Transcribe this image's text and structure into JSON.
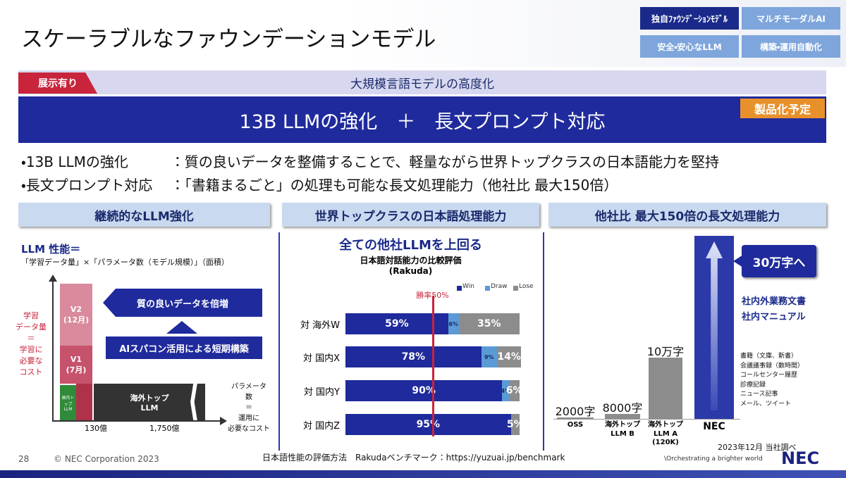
{
  "header": {
    "title": "スケーラブルなファウンデーションモデル",
    "nav": [
      "独自ﾌｧｳﾝﾃﾞｰｼｮﾝﾓﾃﾞﾙ",
      "マルチモーダルAI",
      "安全・安心なLLM",
      "構築・運用自動化"
    ]
  },
  "banner": {
    "tag": "展示有り",
    "subtitle": "大規模言語モデルの高度化",
    "headline": "13B LLMの強化　＋　長文プロンプト対応",
    "badge": "製品化予定"
  },
  "bullets": [
    {
      "label": "13B LLMの強化",
      "text": "：質の良いデータを整備することで、軽量ながら世界トップクラスの日本語能力を堅持"
    },
    {
      "label": "長文プロンプト対応",
      "text": "：「書籍まるごと」の処理も可能な長文処理能力（他社比 最大150倍）"
    }
  ],
  "panels": [
    {
      "title": "継続的なLLM強化",
      "formula_title": "LLM 性能＝",
      "formula": "「学習データ量」×「パラメータ数（モデル規模）」（面積）",
      "y_label": "学習\nデータ量\n＝\n学習に\n必要な\nコスト",
      "x_label": "パラメータ\n数\n＝\n運用に\n必要なコスト",
      "blocks": [
        "V2\n(12月)",
        "V1\n(7月)",
        "国内トップ\nLLM",
        "海外トップ\nLLM"
      ],
      "callouts": [
        "質の良いデータを倍増",
        "AIスパコン活用による短期構築"
      ],
      "x_ticks": [
        "130億",
        "1,750億"
      ]
    },
    {
      "title": "世界トップクラスの日本語処理能力",
      "headline": "全ての他社LLMを上回る",
      "chart": {
        "type": "bar",
        "orientation": "horizontal",
        "stacked": true,
        "title": "日本語対話能力の比較評価",
        "subtitle": "(Rakuda)",
        "reference_line": {
          "value": 50,
          "label": "勝率50%"
        },
        "categories": [
          "対 海外W",
          "対 国内X",
          "対 国内Y",
          "対 国内Z"
        ],
        "xlim": [
          0,
          100
        ],
        "series": [
          {
            "name": "Win",
            "color": "#1f2a9c",
            "values": [
              59,
              78,
              90,
              95
            ],
            "value_labels": [
              "59%",
              "78%",
              "90%",
              "95%"
            ]
          },
          {
            "name": "Draw",
            "color": "#5b9bd5",
            "values": [
              6,
              9,
              4,
              0
            ],
            "value_labels": [
              "6%",
              "9%",
              "4%",
              null
            ]
          },
          {
            "name": "Lose",
            "color": "#8c8c8c",
            "values": [
              35,
              14,
              6,
              5
            ],
            "value_labels": [
              "35%",
              "14%",
              "6%",
              "5%"
            ]
          }
        ]
      }
    },
    {
      "title": "他社比 最大150倍の長文処理能力",
      "chart": {
        "type": "bar",
        "categories": [
          "OSS",
          "海外トップ\nLLM B",
          "海外トップ\nLLM A\n(120K)",
          "NEC"
        ],
        "values": [
          2000,
          8000,
          100000,
          300000
        ],
        "value_labels": [
          "2000字",
          "8000字",
          "10万字",
          "30万字へ"
        ],
        "ylim": [
          0,
          300000
        ],
        "color": "#8c8c8c",
        "highlight_color": "#2b3aa8"
      },
      "annotations": [
        "社内外業務文書\n社内マニュアル",
        "書籍（文庫、新書）\n会議議事録（数時間）\nコールセンター履歴\n診療記録\nニュース記事\nメール、ツイート"
      ]
    }
  ],
  "footer": {
    "page": "28",
    "copyright": "© NEC Corporation 2023",
    "note": "日本語性能の評価方法　Rakudaベンチマーク：https://yuzuai.jp/benchmark",
    "source": "2023年12月 当社調べ",
    "tagline": "\\Orchestrating a brighter world",
    "logo": "NEC"
  }
}
